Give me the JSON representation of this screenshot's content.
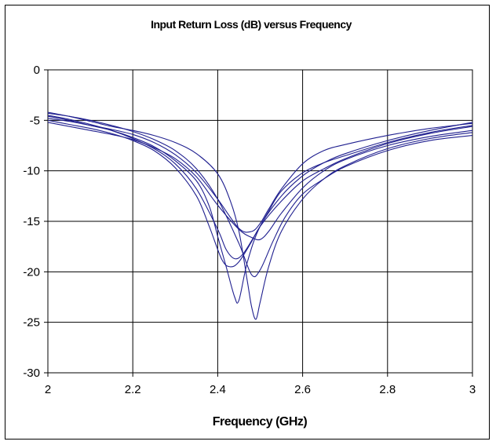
{
  "colors": {
    "series": "#1f1f8f",
    "grid": "#000000",
    "background": "#ffffff"
  },
  "chart_data": {
    "type": "line",
    "title": "Input Return Loss (dB) versus Frequency",
    "xlabel": "Frequency (GHz)",
    "ylabel": "",
    "xlim": [
      2,
      3
    ],
    "ylim": [
      -30,
      0
    ],
    "xticks": [
      2,
      2.2,
      2.4,
      2.6,
      2.8,
      3
    ],
    "xtick_labels": [
      "2",
      "2.2",
      "2.4",
      "2.6",
      "2.8",
      "3"
    ],
    "yticks": [
      0,
      -5,
      -10,
      -15,
      -20,
      -25,
      -30
    ],
    "ytick_labels": [
      "0",
      "-5",
      "-10",
      "-15",
      "-20",
      "-25",
      "-30"
    ],
    "grid": true,
    "legend": "none",
    "series": [
      {
        "x": [
          2.0,
          2.05,
          2.1,
          2.15,
          2.2,
          2.25,
          2.3,
          2.35,
          2.38,
          2.4,
          2.42,
          2.44,
          2.45,
          2.47,
          2.5,
          2.55,
          2.6,
          2.65,
          2.7,
          2.8,
          2.9,
          3.0
        ],
        "y": [
          -4.6,
          -5.0,
          -5.5,
          -6.0,
          -6.7,
          -7.6,
          -9.0,
          -11.0,
          -13.5,
          -16.5,
          -19.5,
          -22.5,
          -22.8,
          -19.0,
          -15.5,
          -12.5,
          -10.5,
          -9.2,
          -8.3,
          -7.0,
          -6.0,
          -5.2
        ]
      },
      {
        "x": [
          2.0,
          2.05,
          2.1,
          2.15,
          2.2,
          2.25,
          2.3,
          2.35,
          2.4,
          2.43,
          2.45,
          2.47,
          2.48,
          2.49,
          2.5,
          2.52,
          2.55,
          2.6,
          2.65,
          2.7,
          2.8,
          2.9,
          3.0
        ],
        "y": [
          -4.2,
          -4.6,
          -5.1,
          -5.6,
          -6.0,
          -6.5,
          -7.2,
          -8.3,
          -10.3,
          -13.0,
          -16.0,
          -21.0,
          -23.5,
          -24.7,
          -23.0,
          -19.5,
          -16.0,
          -12.8,
          -10.8,
          -9.5,
          -7.8,
          -6.8,
          -6.2
        ]
      },
      {
        "x": [
          2.0,
          2.05,
          2.1,
          2.15,
          2.2,
          2.25,
          2.3,
          2.35,
          2.38,
          2.41,
          2.43,
          2.45,
          2.48,
          2.5,
          2.55,
          2.6,
          2.65,
          2.7,
          2.8,
          2.9,
          3.0
        ],
        "y": [
          -5.0,
          -5.4,
          -5.8,
          -6.3,
          -7.0,
          -8.0,
          -9.7,
          -12.5,
          -15.5,
          -18.8,
          -19.5,
          -19.0,
          -17.0,
          -15.5,
          -13.0,
          -11.0,
          -9.8,
          -8.8,
          -7.3,
          -6.3,
          -5.6
        ]
      },
      {
        "x": [
          2.0,
          2.05,
          2.1,
          2.15,
          2.2,
          2.25,
          2.3,
          2.35,
          2.4,
          2.42,
          2.44,
          2.46,
          2.49,
          2.52,
          2.55,
          2.6,
          2.65,
          2.7,
          2.8,
          2.9,
          3.0
        ],
        "y": [
          -4.5,
          -4.9,
          -5.4,
          -6.0,
          -6.8,
          -7.8,
          -9.3,
          -11.8,
          -15.8,
          -17.8,
          -18.7,
          -18.2,
          -16.2,
          -14.0,
          -12.0,
          -10.2,
          -9.2,
          -8.5,
          -7.2,
          -6.2,
          -5.5
        ]
      },
      {
        "x": [
          2.0,
          2.05,
          2.1,
          2.15,
          2.2,
          2.25,
          2.3,
          2.35,
          2.4,
          2.45,
          2.48,
          2.5,
          2.53,
          2.56,
          2.6,
          2.65,
          2.7,
          2.8,
          2.9,
          3.0
        ],
        "y": [
          -4.3,
          -4.6,
          -5.0,
          -5.5,
          -6.1,
          -6.9,
          -8.0,
          -9.8,
          -12.8,
          -17.2,
          -20.3,
          -19.8,
          -17.0,
          -14.5,
          -12.3,
          -10.8,
          -9.6,
          -8.0,
          -7.0,
          -6.5
        ]
      },
      {
        "x": [
          2.0,
          2.05,
          2.1,
          2.15,
          2.2,
          2.25,
          2.3,
          2.35,
          2.4,
          2.45,
          2.48,
          2.5,
          2.52,
          2.55,
          2.6,
          2.65,
          2.7,
          2.8,
          2.9,
          3.0
        ],
        "y": [
          -4.8,
          -5.1,
          -5.5,
          -5.9,
          -6.4,
          -7.2,
          -8.4,
          -10.2,
          -12.8,
          -15.7,
          -16.0,
          -15.2,
          -13.8,
          -11.8,
          -9.3,
          -8.0,
          -7.4,
          -6.5,
          -5.8,
          -5.3
        ]
      },
      {
        "x": [
          2.0,
          2.05,
          2.1,
          2.15,
          2.2,
          2.25,
          2.3,
          2.35,
          2.4,
          2.45,
          2.48,
          2.5,
          2.52,
          2.55,
          2.6,
          2.65,
          2.7,
          2.8,
          2.9,
          3.0
        ],
        "y": [
          -5.2,
          -5.6,
          -6.0,
          -6.4,
          -6.9,
          -7.7,
          -8.8,
          -10.6,
          -13.4,
          -15.8,
          -16.6,
          -16.8,
          -16.0,
          -14.2,
          -11.7,
          -10.0,
          -8.9,
          -7.5,
          -6.6,
          -6.0
        ]
      }
    ]
  }
}
